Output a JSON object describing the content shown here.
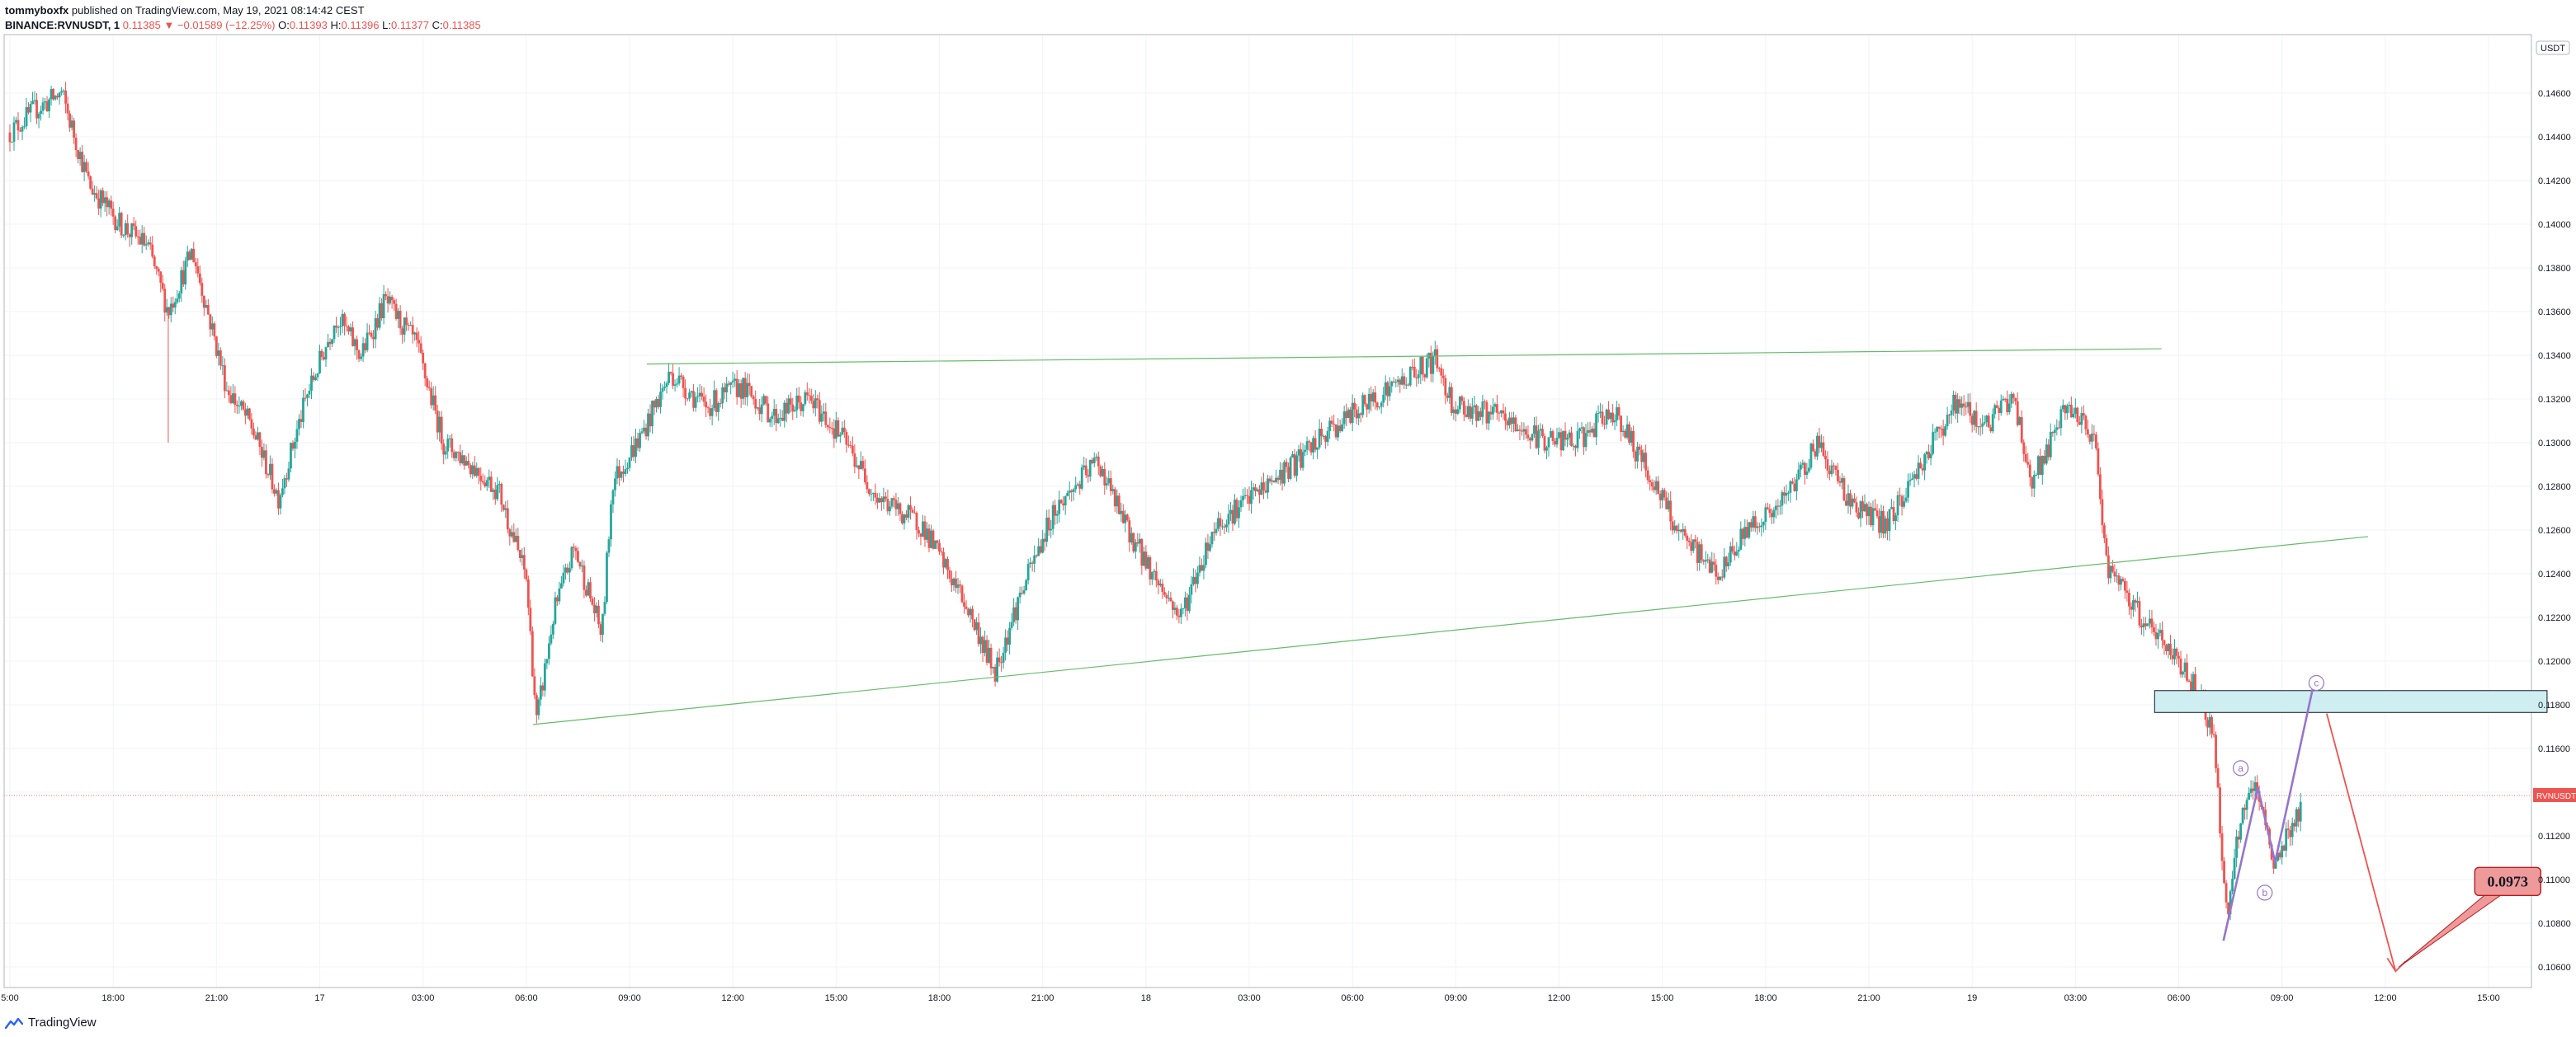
{
  "header": {
    "author": "tommyboxfx",
    "published": "published on TradingView.com, May 19, 2021 08:14:42 CEST",
    "symbol": "BINANCE:RVNUSDT, 1",
    "last": "0.11385",
    "change": "▼ −0.01589 (−12.25%)",
    "o_label": "O:",
    "o_value": "0.11393",
    "h_label": "H:",
    "h_value": "0.11396",
    "l_label": "L:",
    "l_value": "0.11377",
    "c_label": "C:",
    "c_value": "0.11385"
  },
  "footer": {
    "brand": "TradingView",
    "icon": "tradingview-logo-icon"
  },
  "chart_data": {
    "type": "candlestick",
    "currency_label": "USDT",
    "symbol_tag": "RVNUSDT",
    "last_price": 0.11385,
    "ylim": [
      0.1052,
      0.1474
    ],
    "y_ticks": [
      0.146,
      0.144,
      0.142,
      0.14,
      0.138,
      0.136,
      0.134,
      0.132,
      0.13,
      0.128,
      0.126,
      0.124,
      0.122,
      0.12,
      0.118,
      0.116,
      0.114,
      0.112,
      0.11,
      0.108,
      0.106
    ],
    "y_tick_labels": [
      "0.14600",
      "0.14400",
      "0.14200",
      "0.14000",
      "0.13800",
      "0.13600",
      "0.13400",
      "0.13200",
      "0.13000",
      "0.12800",
      "0.12600",
      "0.12400",
      "0.12200",
      "0.12000",
      "0.11800",
      "0.11600",
      "0.11400",
      "0.11200",
      "0.11000",
      "0.10800",
      "0.10600"
    ],
    "xlim_hours": [
      -0.1,
      62
    ],
    "x_ticks": [
      {
        "t": 0,
        "label": "5:00"
      },
      {
        "t": 3,
        "label": "18:00"
      },
      {
        "t": 6,
        "label": "21:00"
      },
      {
        "t": 9,
        "label": "17"
      },
      {
        "t": 12,
        "label": "03:00"
      },
      {
        "t": 15,
        "label": "06:00"
      },
      {
        "t": 18,
        "label": "09:00"
      },
      {
        "t": 21,
        "label": "12:00"
      },
      {
        "t": 24,
        "label": "15:00"
      },
      {
        "t": 27,
        "label": "18:00"
      },
      {
        "t": 30,
        "label": "21:00"
      },
      {
        "t": 33,
        "label": "18"
      },
      {
        "t": 36,
        "label": "03:00"
      },
      {
        "t": 39,
        "label": "06:00"
      },
      {
        "t": 42,
        "label": "09:00"
      },
      {
        "t": 45,
        "label": "12:00"
      },
      {
        "t": 48,
        "label": "15:00"
      },
      {
        "t": 51,
        "label": "18:00"
      },
      {
        "t": 54,
        "label": "21:00"
      },
      {
        "t": 57,
        "label": "19"
      },
      {
        "t": 60,
        "label": "03:00"
      },
      {
        "t": 63,
        "label": "06:00"
      },
      {
        "t": 66,
        "label": "09:00"
      },
      {
        "t": 69,
        "label": "12:00"
      },
      {
        "t": 72,
        "label": "15:00"
      }
    ],
    "price_path": [
      [
        0,
        0.1442
      ],
      [
        0.7,
        0.1452
      ],
      [
        1.5,
        0.146
      ],
      [
        2.3,
        0.1418
      ],
      [
        3.2,
        0.14
      ],
      [
        4.0,
        0.139
      ],
      [
        4.6,
        0.136
      ],
      [
        5.3,
        0.1388
      ],
      [
        6.3,
        0.1325
      ],
      [
        7.0,
        0.1308
      ],
      [
        7.8,
        0.1275
      ],
      [
        8.6,
        0.132
      ],
      [
        9.5,
        0.1358
      ],
      [
        10.2,
        0.134
      ],
      [
        10.9,
        0.1365
      ],
      [
        11.8,
        0.1345
      ],
      [
        12.6,
        0.13
      ],
      [
        13.4,
        0.129
      ],
      [
        14.2,
        0.1278
      ],
      [
        15.0,
        0.1238
      ],
      [
        15.3,
        0.1172
      ],
      [
        15.8,
        0.1222
      ],
      [
        16.4,
        0.1252
      ],
      [
        17.2,
        0.1212
      ],
      [
        17.5,
        0.1282
      ],
      [
        18.3,
        0.1302
      ],
      [
        19.2,
        0.1332
      ],
      [
        20.2,
        0.1316
      ],
      [
        21.2,
        0.1326
      ],
      [
        22.2,
        0.1312
      ],
      [
        23.2,
        0.132
      ],
      [
        24.2,
        0.1302
      ],
      [
        25.2,
        0.1275
      ],
      [
        26.5,
        0.1262
      ],
      [
        27.8,
        0.1225
      ],
      [
        28.6,
        0.1195
      ],
      [
        29.3,
        0.1228
      ],
      [
        30.3,
        0.1268
      ],
      [
        31.6,
        0.1292
      ],
      [
        32.4,
        0.1262
      ],
      [
        33.2,
        0.124
      ],
      [
        34.0,
        0.122
      ],
      [
        35.0,
        0.1262
      ],
      [
        36.3,
        0.1278
      ],
      [
        37.3,
        0.129
      ],
      [
        38.3,
        0.1305
      ],
      [
        39.6,
        0.132
      ],
      [
        40.8,
        0.1332
      ],
      [
        41.4,
        0.1338
      ],
      [
        41.9,
        0.1318
      ],
      [
        43.2,
        0.1312
      ],
      [
        44.4,
        0.1302
      ],
      [
        45.5,
        0.13
      ],
      [
        46.6,
        0.1315
      ],
      [
        47.8,
        0.128
      ],
      [
        48.6,
        0.1255
      ],
      [
        49.7,
        0.124
      ],
      [
        50.5,
        0.1262
      ],
      [
        51.4,
        0.127
      ],
      [
        52.5,
        0.13
      ],
      [
        53.5,
        0.1272
      ],
      [
        54.5,
        0.1262
      ],
      [
        55.5,
        0.129
      ],
      [
        56.5,
        0.1318
      ],
      [
        57.4,
        0.1308
      ],
      [
        58.2,
        0.1322
      ],
      [
        58.7,
        0.1282
      ],
      [
        59.3,
        0.13
      ],
      [
        59.8,
        0.1318
      ],
      [
        60.6,
        0.1298
      ],
      [
        60.9,
        0.1245
      ],
      [
        61.5,
        0.1228
      ],
      [
        62.2,
        0.1215
      ],
      [
        63.1,
        0.1198
      ],
      [
        63.6,
        0.1185
      ],
      [
        64.0,
        0.1168
      ],
      [
        64.4,
        0.1082
      ],
      [
        64.8,
        0.1128
      ],
      [
        65.2,
        0.1142
      ],
      [
        65.8,
        0.1108
      ],
      [
        66.6,
        0.1135
      ]
    ],
    "drawings": {
      "resistance_line": {
        "from": [
          18.5,
          0.1336
        ],
        "to": [
          62.5,
          0.1343
        ],
        "color": "#66bb6a"
      },
      "support_line": {
        "from": [
          15.2,
          0.1171
        ],
        "to": [
          68.5,
          0.1257
        ],
        "color": "#66bb6a"
      },
      "zone": {
        "from": [
          62.3,
          0.11865
        ],
        "to": [
          73.7,
          0.11765
        ],
        "fill": "#cfeef2",
        "stroke": "#131722"
      },
      "wave_path": [
        [
          64.3,
          0.1072
        ],
        [
          65.3,
          0.1142
        ],
        [
          65.8,
          0.1108
        ],
        [
          66.9,
          0.1188
        ]
      ],
      "wave_color": "#9575cd",
      "wave_labels": [
        {
          "t": 64.8,
          "p": 0.1151,
          "text": "a"
        },
        {
          "t": 65.5,
          "p": 0.1094,
          "text": "b"
        },
        {
          "t": 67.0,
          "p": 0.119,
          "text": "c"
        }
      ],
      "projection": {
        "from": [
          67.3,
          0.1176
        ],
        "to": [
          69.3,
          0.1058
        ],
        "color": "#ef5350"
      },
      "target_callout": {
        "text": "0.0973",
        "anchor": [
          69.4,
          0.106
        ],
        "box_at": [
          71.6,
          0.1098
        ]
      }
    }
  }
}
